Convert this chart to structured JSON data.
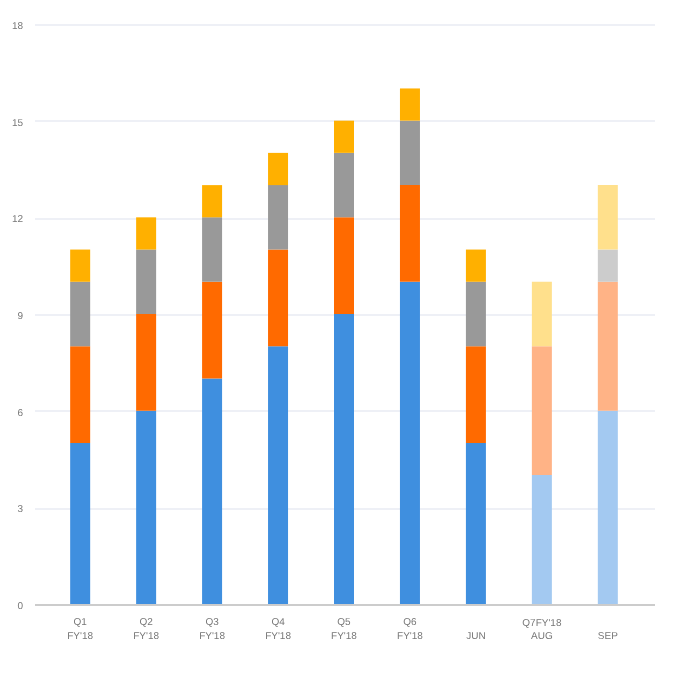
{
  "chart_data": {
    "type": "bar",
    "stacked": true,
    "categories": [
      "Q1\nFY'18",
      "Q2\nFY'18",
      "Q3\nFY'18",
      "Q4\nFY'18",
      "Q5\nFY'18",
      "Q6\nFY'18",
      "JUN",
      "AUG",
      "SEP"
    ],
    "series": [
      {
        "colors": [
          "#3f8fdf",
          "#3f8fdf",
          "#3f8fdf",
          "#3f8fdf",
          "#3f8fdf",
          "#3f8fdf",
          "#3f8fdf",
          "#a3c9f1",
          "#a3c9f1"
        ],
        "values": [
          5,
          6,
          7,
          8,
          9,
          10,
          5,
          4,
          6
        ]
      },
      {
        "colors": [
          "#ff6a00",
          "#ff6a00",
          "#ff6a00",
          "#ff6a00",
          "#ff6a00",
          "#ff6a00",
          "#ff6a00",
          "#ffb386",
          "#ffb386"
        ],
        "values": [
          3,
          3,
          3,
          3,
          3,
          3,
          3,
          4,
          4
        ]
      },
      {
        "colors": [
          "#999999",
          "#999999",
          "#999999",
          "#999999",
          "#999999",
          "#999999",
          "#999999",
          "#cccccc",
          "#cccccc"
        ],
        "values": [
          2,
          2,
          2,
          2,
          2,
          2,
          2,
          0,
          1
        ]
      },
      {
        "colors": [
          "#ffb000",
          "#ffb000",
          "#ffb000",
          "#ffb000",
          "#ffb000",
          "#ffb000",
          "#ffb000",
          "#ffe08c",
          "#ffe08c"
        ],
        "values": [
          1,
          1,
          1,
          1,
          1,
          1,
          1,
          2,
          2
        ]
      }
    ],
    "annotations": [
      "Q7FY'18"
    ],
    "ylim": [
      0,
      18
    ],
    "yticks": [
      0,
      3,
      6,
      9,
      12,
      15,
      18
    ],
    "grid": "y"
  }
}
